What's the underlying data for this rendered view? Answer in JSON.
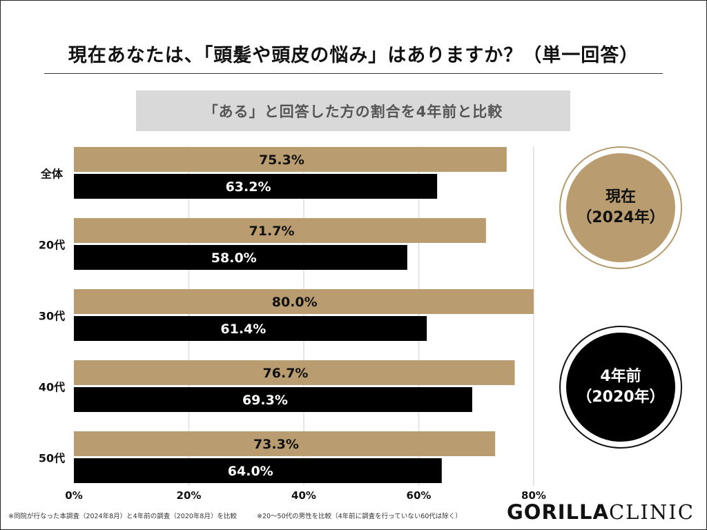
{
  "title": "現在あなたは、「頭髪や頭皮の悩み」はありますか？（単一回答）",
  "subtitle": "「ある」と回答した方の割合を4年前と比較",
  "colors": {
    "current": "#b99d70",
    "previous": "#000000",
    "grid": "#dddddd",
    "subtitle_bg": "#d9d9d9"
  },
  "chart_data": {
    "type": "bar",
    "orientation": "horizontal",
    "categories": [
      "全体",
      "20代",
      "30代",
      "40代",
      "50代"
    ],
    "series": [
      {
        "name": "現在（2024年）",
        "values": [
          75.3,
          71.7,
          80.0,
          76.7,
          73.3
        ],
        "color": "#b99d70"
      },
      {
        "name": "4年前（2020年）",
        "values": [
          63.2,
          58.0,
          61.4,
          69.3,
          64.0
        ],
        "color": "#000000"
      }
    ],
    "value_labels": [
      [
        "75.3%",
        "71.7%",
        "80.0%",
        "76.7%",
        "73.3%"
      ],
      [
        "63.2%",
        "58.0%",
        "61.4%",
        "69.3%",
        "64.0%"
      ]
    ],
    "xlim": [
      0,
      80
    ],
    "xticks": [
      0,
      20,
      40,
      60,
      80
    ],
    "xtick_labels": [
      "0%",
      "20%",
      "40%",
      "60%",
      "80%"
    ],
    "grid": true,
    "legend_position": "right"
  },
  "legend": {
    "current": {
      "line1": "現在",
      "line2": "（2024年）"
    },
    "previous": {
      "line1": "4年前",
      "line2": "（2020年）"
    }
  },
  "footnotes": [
    "※同院が行なった本調査（2024年8月）と4年前の調査（2020年8月）を比較",
    "※20～50代の男性を比較（4年前に調査を行っていない60代は除く）"
  ],
  "brand": {
    "part1": "GORILLA",
    "part2": "CLINIC"
  }
}
